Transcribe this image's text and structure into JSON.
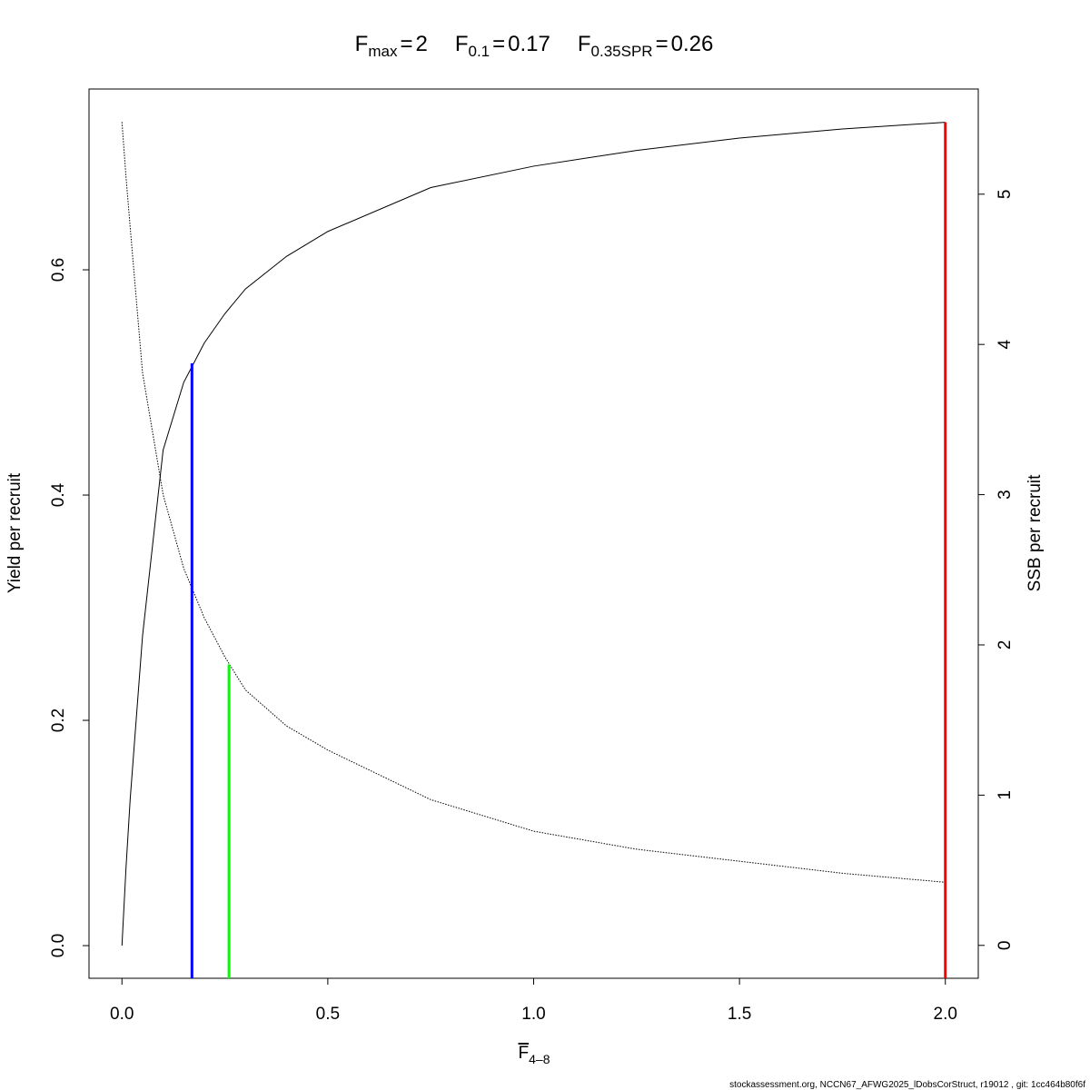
{
  "chart_data": {
    "type": "line",
    "title": [
      {
        "symbol": "F",
        "subscript": "max",
        "operator": "=",
        "value": 2,
        "color": "#ff0000",
        "line_top": 0.731,
        "line_axis": "y"
      },
      {
        "symbol": "F",
        "subscript": "0.1",
        "operator": "=",
        "value": 0.17,
        "color": "#0000ff",
        "line_top": 0.517,
        "line_axis": "y"
      },
      {
        "symbol": "F",
        "subscript": "0.35SPR",
        "operator": "=",
        "value": 0.26,
        "color": "#00ff00",
        "line_top": 1.87,
        "line_axis": "y2"
      }
    ],
    "x_label": {
      "symbol": "F",
      "subscript": "4–8"
    },
    "y_label": "Yield per recruit",
    "y2_label": "SSB per recruit",
    "footer": "stockassessment.org, NCCN67_AFWG2025_lDobsCorStruct, r19012 , git: 1cc464b80f6f",
    "x": [
      0,
      0.01,
      0.02,
      0.05,
      0.1,
      0.15,
      0.2,
      0.25,
      0.3,
      0.4,
      0.5,
      0.75,
      1.0,
      1.25,
      1.5,
      1.75,
      2.0
    ],
    "series": [
      {
        "color": "#000000",
        "dash": "solid",
        "values": [
          0,
          0.07,
          0.13,
          0.275,
          0.44,
          0.5,
          0.535,
          0.561,
          0.583,
          0.612,
          0.634,
          0.673,
          0.692,
          0.706,
          0.717,
          0.725,
          0.731
        ]
      },
      {
        "color": "#000000",
        "dash": "dotted",
        "axis": "y2",
        "values": [
          5.48,
          5.11,
          4.78,
          3.81,
          3.0,
          2.51,
          2.18,
          1.92,
          1.7,
          1.46,
          1.3,
          0.97,
          0.76,
          0.64,
          0.56,
          0.48,
          0.42
        ]
      }
    ],
    "xlim": [
      -0.08,
      2.08
    ],
    "xticks": [
      {
        "value": 0,
        "label": "0.0"
      },
      {
        "value": 0.5,
        "label": "0.5"
      },
      {
        "value": 1,
        "label": "1.0"
      },
      {
        "value": 1.5,
        "label": "1.5"
      },
      {
        "value": 2,
        "label": "2.0"
      }
    ],
    "ylim": [
      -0.029,
      0.7605
    ],
    "yticks": [
      {
        "value": 0,
        "label": "0.0"
      },
      {
        "value": 0.2,
        "label": "0.2"
      },
      {
        "value": 0.4,
        "label": "0.4"
      },
      {
        "value": 0.6,
        "label": "0.6"
      }
    ],
    "y2lim": [
      -0.219,
      5.7
    ],
    "y2ticks": [
      0,
      1,
      2,
      3,
      4,
      5
    ]
  }
}
